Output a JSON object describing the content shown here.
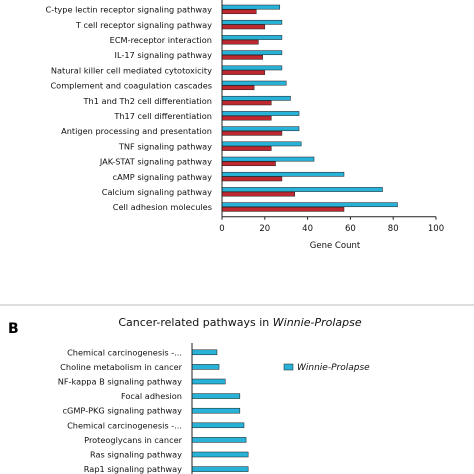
{
  "chart_data": [
    {
      "type": "bar",
      "orientation": "horizontal",
      "categories": [
        "C-type lectin receptor signaling pathway",
        "T cell receptor signaling pathway",
        "ECM-receptor interaction",
        "IL-17 signaling pathway",
        "Natural killer cell mediated cytotoxicity",
        "Complement and coagulation cascades",
        "Th1 and Th2 cell differentiation",
        "Th17 cell differentiation",
        "Antigen processing and presentation",
        "TNF signaling pathway",
        "JAK-STAT signaling pathway",
        "cAMP signaling pathway",
        "Calcium signaling pathway",
        "Cell adhesion molecules"
      ],
      "series": [
        {
          "color": "#29b2d8",
          "values": [
            27,
            28,
            28,
            28,
            28,
            30,
            32,
            36,
            36,
            37,
            43,
            57,
            75,
            82
          ]
        },
        {
          "color": "#c0282f",
          "values": [
            16,
            20,
            17,
            19,
            20,
            15,
            23,
            23,
            28,
            23,
            25,
            28,
            34,
            57
          ]
        }
      ],
      "xticks": [
        "0",
        "20",
        "40",
        "60",
        "80",
        "100"
      ],
      "xlim": [
        0,
        100
      ],
      "xlabel": "Gene Count",
      "grid": false
    },
    {
      "type": "bar",
      "orientation": "horizontal",
      "panel_label": "B",
      "title_main": "Cancer-related pathways in ",
      "title_emph": "Winnie-Prolapse",
      "categories": [
        "Chemical carcinogenesis -...",
        "Choline metabolism in cancer",
        "NF-kappa B signaling pathway",
        "Focal adhesion",
        "cGMP-PKG signaling pathway",
        "Chemical carcinogenesis -...",
        "Proteoglycans in cancer",
        "Ras signaling pathway",
        "Rap1 signaling pathway"
      ],
      "series": [
        {
          "name": "Winnie-Prolapse",
          "color": "#29b2d8",
          "values": [
            12,
            13,
            16,
            23,
            23,
            25,
            26,
            27,
            27
          ]
        }
      ],
      "xlim": [
        0,
        100
      ],
      "legend": "top-right"
    }
  ]
}
